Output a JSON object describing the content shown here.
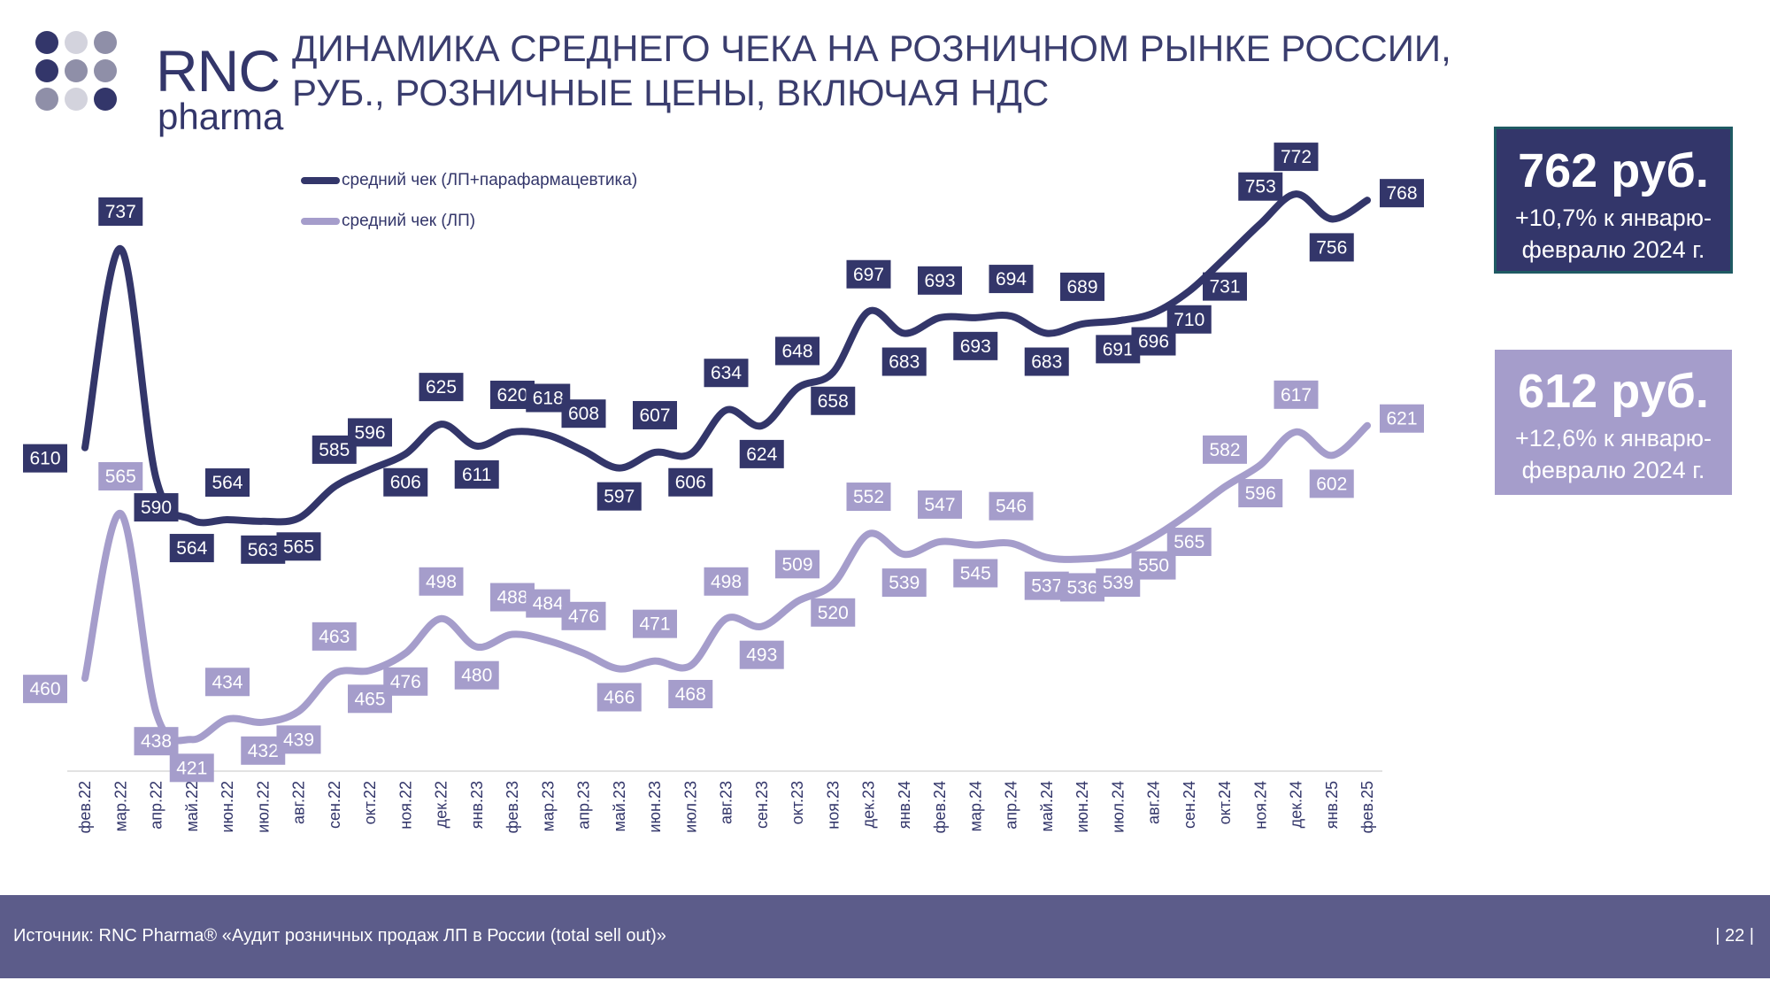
{
  "logo": {
    "brand": "RNC",
    "sub": "pharma"
  },
  "title": [
    "ДИНАМИКА СРЕДНЕГО ЧЕКА НА РОЗНИЧНОМ РЫНКЕ РОССИИ,",
    "РУБ., РОЗНИЧНЫЕ ЦЕНЫ, ВКЛЮЧАЯ НДС"
  ],
  "kpi": [
    {
      "value": "762 руб.",
      "line1": "+10,7% к январю-",
      "line2": "февралю 2024 г.",
      "color": "#33366a"
    },
    {
      "value": "612 руб.",
      "line1": "+12,6% к январю-",
      "line2": "февралю 2024 г.",
      "color": "#a59dcb"
    }
  ],
  "chart_data": {
    "type": "line",
    "title": "Динамика среднего чека на розничном рынке России, руб., розничные цены, включая НДС",
    "legend_position": "top-left",
    "grid": false,
    "categories": [
      "фев.22",
      "мар.22",
      "апр.22",
      "май.22",
      "июн.22",
      "июл.22",
      "авг.22",
      "сен.22",
      "окт.22",
      "ноя.22",
      "дек.22",
      "янв.23",
      "фев.23",
      "мар.23",
      "апр.23",
      "май.23",
      "июн.23",
      "июл.23",
      "авг.23",
      "сен.23",
      "окт.23",
      "ноя.23",
      "дек.23",
      "янв.24",
      "фев.24",
      "мар.24",
      "апр.24",
      "май.24",
      "июн.24",
      "июл.24",
      "авг.24",
      "сен.24",
      "окт.24",
      "ноя.24",
      "дек.24",
      "янв.25",
      "фев.25"
    ],
    "series": [
      {
        "name": "средний чек (ЛП+парафармацевтика)",
        "color": "#33366a",
        "values": [
          610,
          737,
          590,
          564,
          564,
          563,
          565,
          585,
          596,
          606,
          625,
          611,
          620,
          618,
          608,
          597,
          607,
          606,
          634,
          624,
          648,
          658,
          697,
          683,
          693,
          693,
          694,
          683,
          689,
          691,
          696,
          710,
          731,
          753,
          772,
          756,
          768
        ]
      },
      {
        "name": "средний чек (ЛП)",
        "color": "#a59dcb",
        "values": [
          460,
          565,
          438,
          421,
          434,
          432,
          439,
          463,
          465,
          476,
          498,
          480,
          488,
          484,
          476,
          466,
          471,
          468,
          498,
          493,
          509,
          520,
          552,
          539,
          547,
          545,
          546,
          537,
          536,
          539,
          550,
          565,
          582,
          596,
          617,
          602,
          621
        ]
      }
    ]
  },
  "footer": {
    "source": "Источник: RNC Pharma® «Аудит розничных продаж ЛП в России (total sell out)»",
    "page": "| 22 |"
  }
}
